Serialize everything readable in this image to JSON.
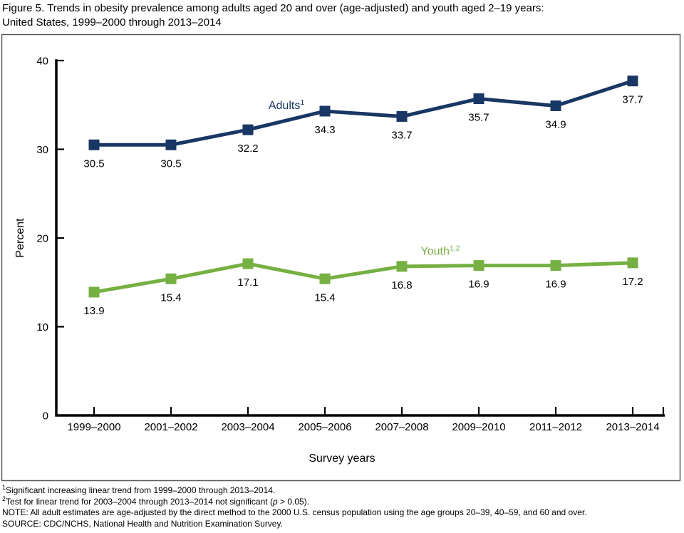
{
  "title": {
    "line1": "Figure 5. Trends in obesity prevalence among adults aged 20 and over (age-adjusted) and youth aged 2–19 years:",
    "line2": "United States, 1999–2000 through 2013–2014"
  },
  "chart_data": {
    "type": "line",
    "categories": [
      "1999–2000",
      "2001–2002",
      "2003–2004",
      "2005–2006",
      "2007–2008",
      "2009–2010",
      "2011–2012",
      "2013–2014"
    ],
    "series": [
      {
        "name": "Adults",
        "label_text": "Adults",
        "label_sup": "1",
        "color": "#193764",
        "values": [
          30.5,
          30.5,
          32.2,
          34.3,
          33.7,
          35.7,
          34.9,
          37.7
        ],
        "label_at": {
          "x": 2.5,
          "y": 35.0
        }
      },
      {
        "name": "Youth",
        "label_text": "Youth",
        "label_sup": "1,2",
        "color": "#76b043",
        "values": [
          13.9,
          15.4,
          17.1,
          15.4,
          16.8,
          16.9,
          16.9,
          17.2
        ],
        "label_at": {
          "x": 4.5,
          "y": 18.55
        }
      }
    ],
    "title": "",
    "xlabel": "Survey years",
    "ylabel": "Percent",
    "ylim": [
      0,
      40
    ],
    "yticks": [
      0,
      10,
      20,
      30,
      40
    ],
    "grid": false,
    "legend_position": "inline-labels",
    "marker": "square",
    "value_label_decimals": 1,
    "axis_color": "#000000",
    "frame_color": "#58595b"
  },
  "footnotes": [
    {
      "sup": "1",
      "text": "Significant increasing linear trend from 1999–2000 through 2013–2014."
    },
    {
      "sup": "2",
      "text_before_italic": "Test for linear trend for 2003–2004 through 2013–2014 not significant (",
      "italic": "p",
      "text_after_italic": " > 0.05)."
    },
    {
      "sup": "",
      "text": "NOTE: All adult estimates are age-adjusted by the direct method to the 2000 U.S. census population using the age groups 20–39, 40–59, and 60 and over."
    },
    {
      "sup": "",
      "text": "SOURCE: CDC/NCHS, National Health and Nutrition Examination Survey."
    }
  ]
}
